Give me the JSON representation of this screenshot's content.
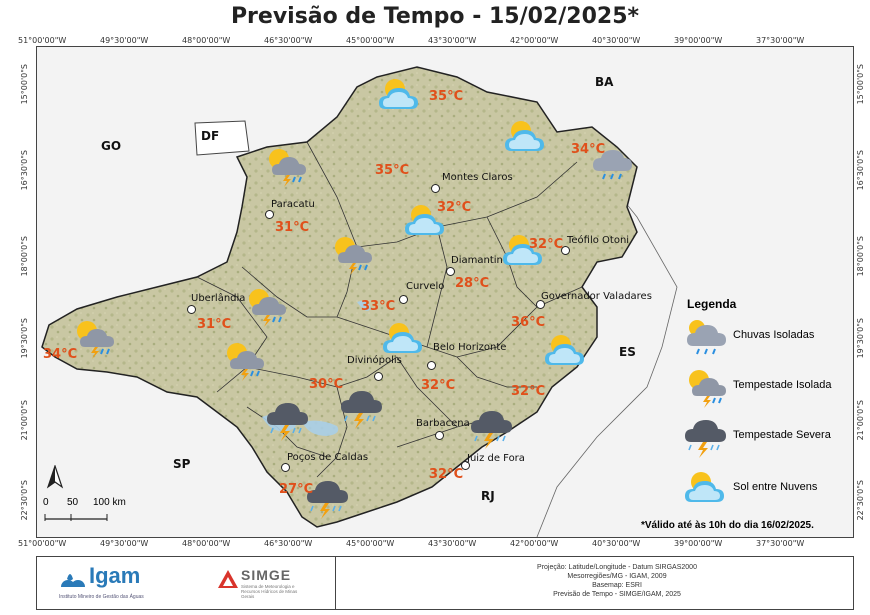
{
  "title": "Previsão de Tempo - 15/02/2025*",
  "longitude_ticks": [
    "51°00'00\"W",
    "49°30'00\"W",
    "48°00'00\"W",
    "46°30'00\"W",
    "45°00'00\"W",
    "43°30'00\"W",
    "42°00'00\"W",
    "40°30'00\"W",
    "39°00'00\"W",
    "37°30'00\"W"
  ],
  "latitude_ticks": [
    "15°00'0\"S",
    "16°30'0\"S",
    "18°00'0\"S",
    "19°30'0\"S",
    "21°00'0\"S",
    "22°30'0\"S"
  ],
  "states": {
    "go": "GO",
    "df": "DF",
    "ba": "BA",
    "es": "ES",
    "sp": "SP",
    "rj": "RJ"
  },
  "cities": [
    {
      "name": "Montes Claros"
    },
    {
      "name": "Paracatu"
    },
    {
      "name": "Teófilo Otoni"
    },
    {
      "name": "Diamantina"
    },
    {
      "name": "Curvelo"
    },
    {
      "name": "Uberlândia"
    },
    {
      "name": "Governador Valadares"
    },
    {
      "name": "Divinópolis"
    },
    {
      "name": "Belo Horizonte"
    },
    {
      "name": "Barbacena"
    },
    {
      "name": "Poços de Caldas"
    },
    {
      "name": "Juiz de Fora"
    }
  ],
  "temperatures": [
    "35°C",
    "35°C",
    "34°C",
    "32°C",
    "31°C",
    "32°C",
    "28°C",
    "33°C",
    "31°C",
    "36°C",
    "34°C",
    "30°C",
    "32°C",
    "32°C",
    "27°C",
    "32°C"
  ],
  "legend": {
    "title": "Legenda",
    "items": [
      {
        "label": "Chuvas Isoladas",
        "icon": "isolated-rain-icon"
      },
      {
        "label": "Tempestade Isolada",
        "icon": "isolated-storm-icon"
      },
      {
        "label": "Tempestade Severa",
        "icon": "severe-storm-icon"
      },
      {
        "label": "Sol entre Nuvens",
        "icon": "sun-clouds-icon"
      }
    ]
  },
  "validity_note": "*Válido até às 10h do dia 16/02/2025.",
  "scale": {
    "labels": [
      "0",
      "50",
      "100 km"
    ]
  },
  "north": "N",
  "footer": {
    "igam": "Igam",
    "igam_sub": "Instituto Mineiro de Gestão das Águas",
    "simge": "SIMGE",
    "simge_sub": "Sistema de Meteorologia e Recursos Hídricos de Minas Gerais",
    "metadata": [
      "Projeção: Latitude/Longitude - Datum SIRGAS2000",
      "Mesorregiões/MG - IGAM, 2009",
      "Basemap: ESRI",
      "Previsão de Tempo - SIMGE/IGAM, 2025"
    ]
  }
}
